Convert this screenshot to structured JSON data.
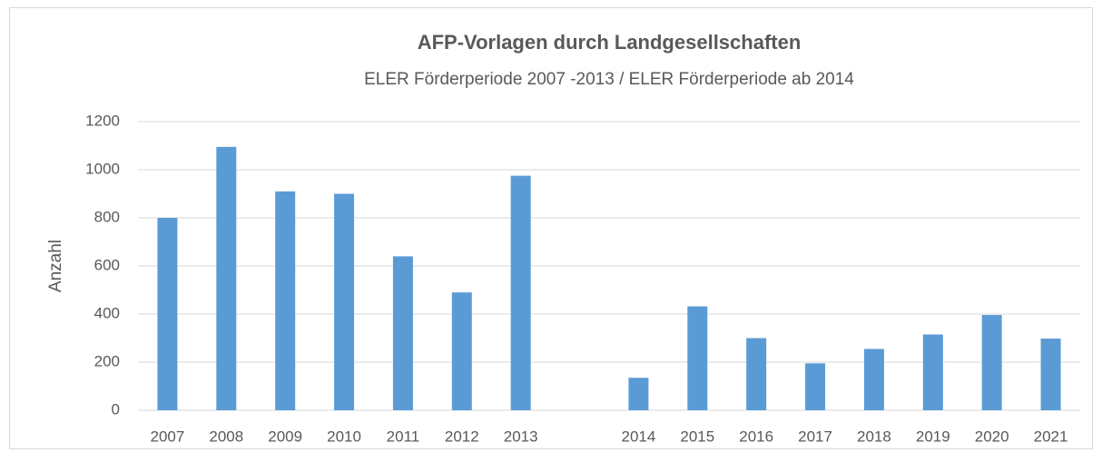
{
  "chart_data": {
    "type": "bar",
    "title": "AFP-Vorlagen durch Landgesellschaften",
    "subtitle": "ELER Förderperiode 2007 -2013 / ELER Förderperiode ab 2014",
    "y_label": "Anzahl",
    "categories": [
      "2007",
      "2008",
      "2009",
      "2010",
      "2011",
      "2012",
      "2013",
      null,
      "2014",
      "2015",
      "2016",
      "2017",
      "2018",
      "2019",
      "2020",
      "2021"
    ],
    "values": [
      800,
      1095,
      910,
      900,
      640,
      490,
      975,
      null,
      135,
      432,
      300,
      195,
      255,
      315,
      396,
      298
    ],
    "color": "#5b9bd5",
    "ylim": [
      0,
      1200
    ],
    "yticks": [
      0,
      200,
      400,
      600,
      800,
      1000,
      1200
    ],
    "grid": true
  }
}
